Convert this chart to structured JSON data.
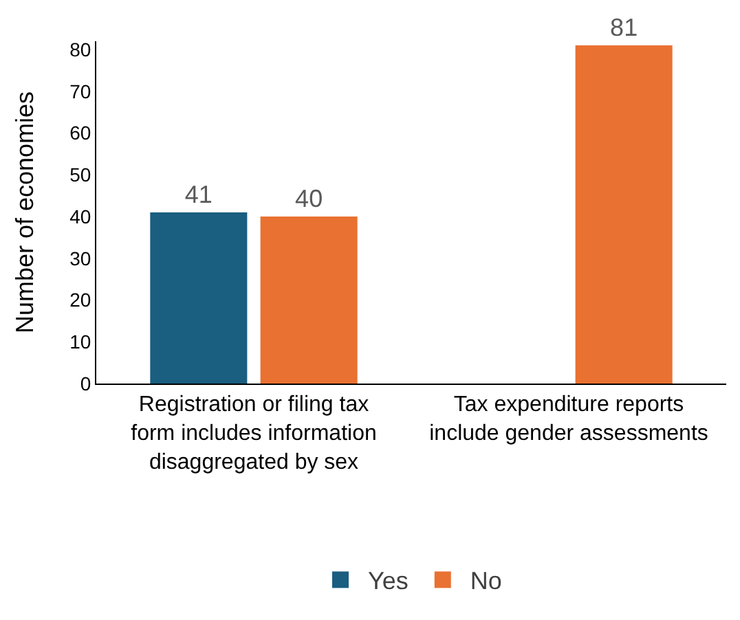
{
  "chart_data": {
    "type": "bar",
    "ylabel": "Number of economies",
    "categories": [
      "Registration or filing tax form includes information disaggregated by sex",
      "Tax expenditure reports include gender assessments"
    ],
    "series": [
      {
        "name": "Yes",
        "color": "#1a5e80",
        "values": [
          41,
          null
        ]
      },
      {
        "name": "No",
        "color": "#e97132",
        "values": [
          40,
          81
        ]
      }
    ],
    "ylim": [
      0,
      82
    ],
    "yticks": [
      0,
      10,
      20,
      30,
      40,
      50,
      60,
      70,
      80
    ],
    "grid": false,
    "legend": "bottom",
    "data_labels": true
  }
}
